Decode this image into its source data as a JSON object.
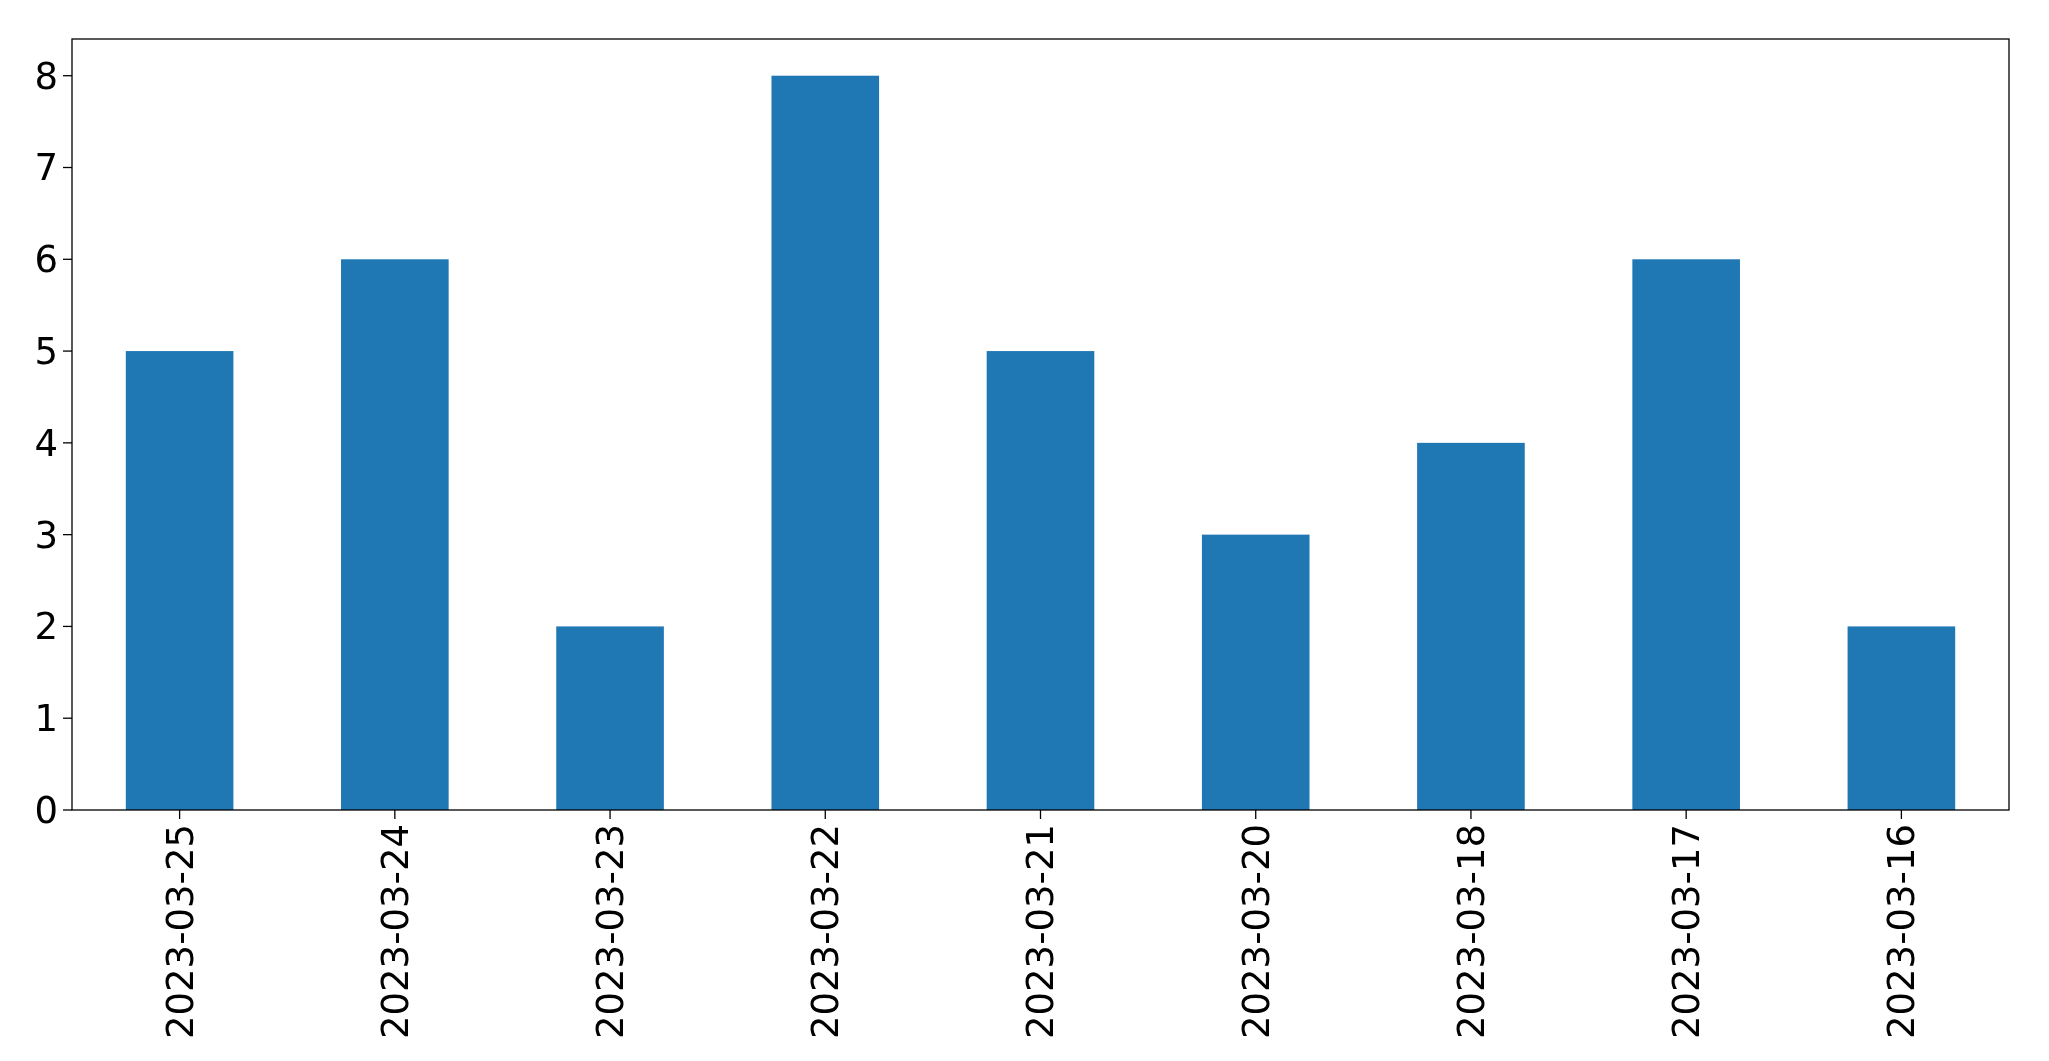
{
  "chart_data": {
    "type": "bar",
    "categories": [
      "2023-03-25",
      "2023-03-24",
      "2023-03-23",
      "2023-03-22",
      "2023-03-21",
      "2023-03-20",
      "2023-03-18",
      "2023-03-17",
      "2023-03-16"
    ],
    "values": [
      5,
      6,
      2,
      8,
      5,
      3,
      4,
      6,
      2
    ],
    "color": "#1f77b4",
    "ylim": [
      0,
      8.4
    ],
    "yticks": [
      0,
      1,
      2,
      3,
      4,
      5,
      6,
      7,
      8
    ],
    "grid": false
  }
}
